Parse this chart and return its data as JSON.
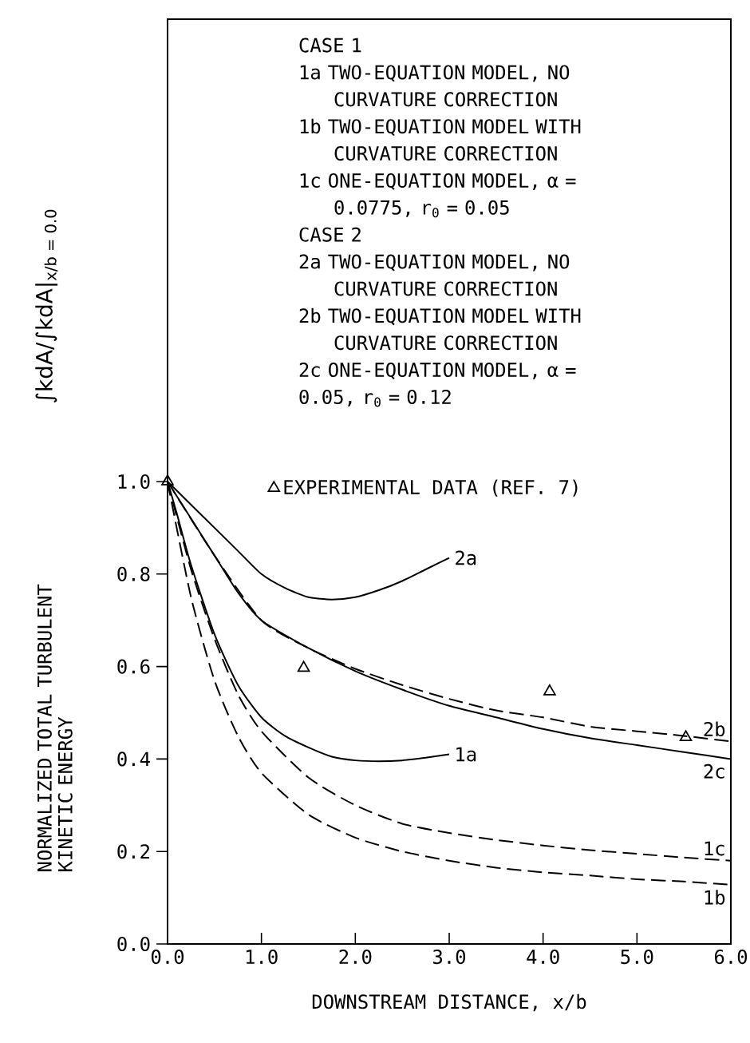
{
  "chart_data": {
    "type": "line",
    "xlabel": "DOWNSTREAM DISTANCE, x/b",
    "ylabel": "NORMALIZED TOTAL TURBULENT KINETIC ENERGY",
    "annotations": [
      "∫kdA/∫kdA|$_{x/b = 0.0}$",
      "CASE 1",
      "1a TWO-EQUATION MODEL, NO CURVATURE CORRECTION",
      "1b TWO-EQUATION MODEL WITH CURVATURE CORRECTION",
      "1c ONE-EQUATION MODEL, α = 0.0775, r$_{0}$ = 0.05",
      "CASE 2",
      "2a TWO-EQUATION MODEL, NO CURVATURE CORRECTION",
      "2b TWO-EQUATION MODEL WITH CURVATURE CORRECTION",
      "2c ONE-EQUATION MODEL, α = 0.05, r$_{0}$ = 0.12"
    ],
    "xlim": [
      0,
      6
    ],
    "ylim": [
      0,
      2.0
    ],
    "xticks": [
      {
        "value": 0,
        "label": "0.0"
      },
      {
        "value": 1,
        "label": "1.0"
      },
      {
        "value": 2,
        "label": "2.0"
      },
      {
        "value": 3,
        "label": "3.0"
      },
      {
        "value": 4,
        "label": "4.0"
      },
      {
        "value": 5,
        "label": "5.0"
      },
      {
        "value": 6,
        "label": "6.0"
      }
    ],
    "yticks": [
      {
        "value": 0,
        "label": "0.0"
      },
      0.2,
      0.4,
      0.6,
      0.8,
      {
        "value": 1,
        "label": "1.0"
      }
    ],
    "grid": false,
    "legend": "left",
    "series": [
      {
        "name": "2a",
        "color": "#000000",
        "line_style": "solid",
        "x": [
          0,
          0.25,
          0.5,
          0.75,
          1.0,
          1.25,
          1.5,
          1.75,
          2.0,
          2.25,
          2.5,
          2.75,
          3.0
        ],
        "values": [
          1.0,
          0.95,
          0.9,
          0.85,
          0.8,
          0.77,
          0.75,
          0.745,
          0.75,
          0.765,
          0.785,
          0.81,
          0.835
        ]
      },
      {
        "name": "2b",
        "color": "#000000",
        "line_style": "dashed",
        "x": [
          0,
          0.5,
          1.0,
          1.5,
          2.0,
          2.5,
          3.0,
          3.5,
          4.0,
          4.5,
          5.0,
          5.5,
          6.0
        ],
        "values": [
          1.0,
          0.84,
          0.7,
          0.64,
          0.595,
          0.56,
          0.53,
          0.505,
          0.49,
          0.47,
          0.46,
          0.45,
          0.438
        ]
      },
      {
        "name": "2c",
        "color": "#000000",
        "line_style": "solid",
        "x": [
          0,
          0.25,
          0.5,
          0.75,
          1.0,
          1.5,
          2.0,
          2.5,
          3.0,
          3.5,
          4.0,
          4.5,
          5.0,
          5.5,
          6.0
        ],
        "values": [
          1.0,
          0.92,
          0.84,
          0.76,
          0.7,
          0.64,
          0.59,
          0.55,
          0.515,
          0.49,
          0.465,
          0.445,
          0.43,
          0.415,
          0.4
        ]
      },
      {
        "name": "1a",
        "color": "#000000",
        "line_style": "solid",
        "x": [
          0,
          0.1,
          0.25,
          0.5,
          0.75,
          1.0,
          1.25,
          1.5,
          1.75,
          2.0,
          2.25,
          2.5,
          2.75,
          3.0
        ],
        "values": [
          1.0,
          0.93,
          0.82,
          0.67,
          0.56,
          0.49,
          0.45,
          0.425,
          0.405,
          0.397,
          0.395,
          0.397,
          0.403,
          0.41
        ]
      },
      {
        "name": "1c",
        "color": "#000000",
        "line_style": "dashed",
        "x": [
          0,
          0.25,
          0.5,
          0.75,
          1.0,
          1.5,
          2.0,
          2.5,
          3.0,
          3.5,
          4.0,
          4.5,
          5.0,
          5.5,
          6.0
        ],
        "values": [
          1.0,
          0.81,
          0.66,
          0.54,
          0.46,
          0.36,
          0.3,
          0.26,
          0.24,
          0.225,
          0.213,
          0.203,
          0.195,
          0.187,
          0.18
        ]
      },
      {
        "name": "1b",
        "color": "#000000",
        "line_style": "dashed",
        "x": [
          0,
          0.25,
          0.5,
          0.75,
          1.0,
          1.5,
          2.0,
          2.5,
          3.0,
          3.5,
          4.0,
          4.5,
          5.0,
          5.5,
          6.0
        ],
        "values": [
          1.0,
          0.75,
          0.57,
          0.45,
          0.37,
          0.28,
          0.23,
          0.2,
          0.18,
          0.165,
          0.155,
          0.148,
          0.14,
          0.135,
          0.128
        ]
      },
      {
        "name": "EXPERIMENTAL DATA (REF. 7)",
        "type": "scatter",
        "marker": "triangle",
        "color": "#000000",
        "x": [
          0,
          1.45,
          4.07,
          5.52
        ],
        "values": [
          1.0,
          0.597,
          0.546,
          0.447
        ]
      }
    ]
  }
}
